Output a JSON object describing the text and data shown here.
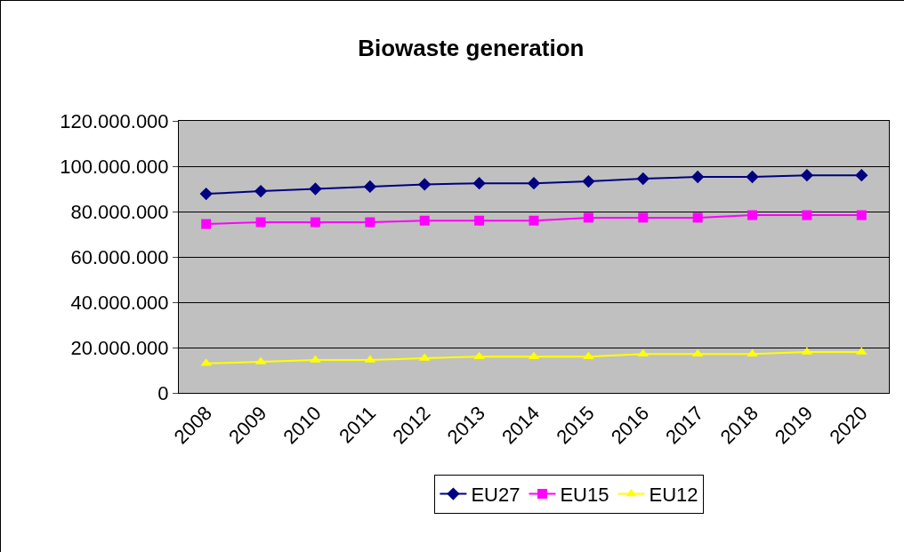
{
  "chart_data": {
    "type": "line",
    "title": "Biowaste generation",
    "categories": [
      "2008",
      "2009",
      "2010",
      "2011",
      "2012",
      "2013",
      "2014",
      "2015",
      "2016",
      "2017",
      "2018",
      "2019",
      "2020"
    ],
    "series": [
      {
        "name": "EU27",
        "color": "#000080",
        "marker": "diamond",
        "values": [
          87800000,
          89000000,
          90000000,
          91000000,
          92000000,
          92500000,
          92500000,
          93300000,
          94500000,
          95300000,
          95300000,
          96000000,
          96000000
        ]
      },
      {
        "name": "EU15",
        "color": "#ff00ff",
        "marker": "square",
        "values": [
          74500000,
          75300000,
          75300000,
          75300000,
          76000000,
          76000000,
          76000000,
          77300000,
          77300000,
          77300000,
          78400000,
          78400000,
          78400000
        ]
      },
      {
        "name": "EU12",
        "color": "#ffff00",
        "marker": "triangle",
        "values": [
          13000000,
          13700000,
          14500000,
          14500000,
          15300000,
          16000000,
          16000000,
          16000000,
          17200000,
          17200000,
          17200000,
          18000000,
          18000000
        ]
      }
    ],
    "ylim": [
      0,
      120000000
    ],
    "yticks": [
      0,
      {
        "value": 20000000,
        "label": "20.000.000"
      },
      {
        "value": 40000000,
        "label": "40.000.000"
      },
      {
        "value": 60000000,
        "label": "60.000.000"
      },
      {
        "value": 80000000,
        "label": "80.000.000"
      },
      {
        "value": 100000000,
        "label": "100.000.000"
      },
      {
        "value": 120000000,
        "label": "120.000.000"
      }
    ],
    "grid": "y",
    "legend": "bottom",
    "line_style": "solid"
  }
}
